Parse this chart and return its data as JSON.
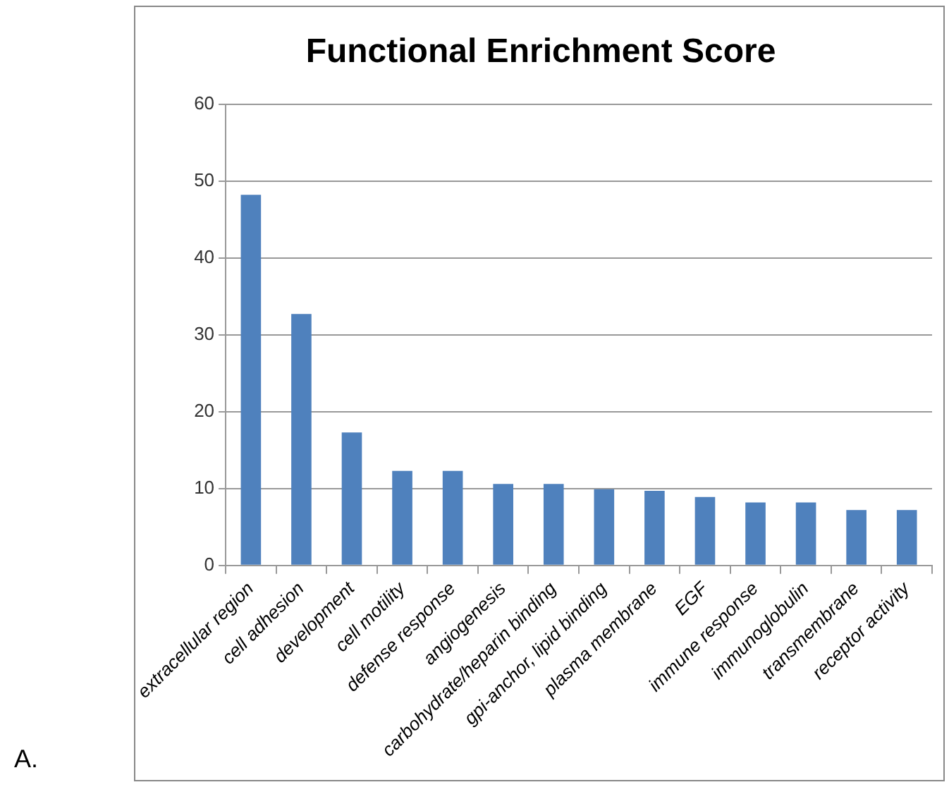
{
  "chart_data": {
    "type": "bar",
    "title": "Functional Enrichment Score",
    "categories": [
      "extracellular region",
      "cell adhesion",
      "development",
      "cell motility",
      "defense response",
      "angiogenesis",
      "carbohydrate/heparin binding",
      "gpi-anchor, lipid binding",
      "plasma membrane",
      "EGF",
      "immune response",
      "immunoglobulin",
      "transmembrane",
      "receptor activity"
    ],
    "values": [
      48.2,
      32.7,
      17.3,
      12.3,
      12.3,
      10.6,
      10.6,
      9.9,
      9.7,
      8.9,
      8.2,
      8.2,
      7.2,
      7.2
    ],
    "color": "#4f81bd",
    "ylim": [
      0,
      60
    ],
    "yticks": [
      0,
      10,
      20,
      30,
      40,
      50,
      60
    ],
    "grid": "y",
    "legend": false,
    "annotations": [
      "A."
    ]
  }
}
